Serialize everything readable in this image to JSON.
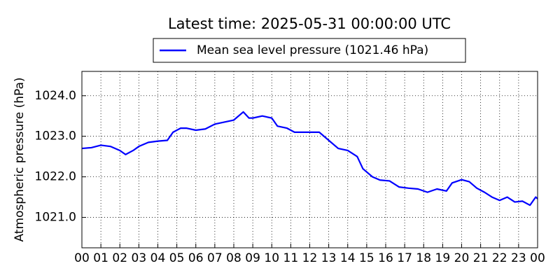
{
  "chart_data": {
    "type": "line",
    "title": "Latest time: 2025-05-31 00:00:00 UTC",
    "ylabel": "Atmospheric pressure (hPa)",
    "series": [
      {
        "name": "Mean sea level pressure (1021.46 hPa)",
        "color": "#0000ff",
        "x": [
          0,
          0.5,
          1,
          1.5,
          2,
          2.3,
          2.7,
          3,
          3.5,
          4,
          4.5,
          4.8,
          5.2,
          5.5,
          6,
          6.5,
          7,
          7.5,
          8,
          8.5,
          8.8,
          9,
          9.5,
          10,
          10.3,
          10.8,
          11.2,
          11.7,
          12,
          12.5,
          13,
          13.5,
          14,
          14.5,
          14.8,
          15.3,
          15.7,
          16.2,
          16.7,
          17.2,
          17.7,
          18.2,
          18.7,
          19.2,
          19.5,
          20,
          20.4,
          20.8,
          21.2,
          21.6,
          22,
          22.4,
          22.8,
          23.2,
          23.6,
          23.9,
          24
        ],
        "values": [
          1022.7,
          1022.72,
          1022.78,
          1022.75,
          1022.65,
          1022.55,
          1022.65,
          1022.75,
          1022.85,
          1022.88,
          1022.9,
          1023.1,
          1023.2,
          1023.2,
          1023.15,
          1023.18,
          1023.3,
          1023.35,
          1023.4,
          1023.6,
          1023.45,
          1023.45,
          1023.5,
          1023.45,
          1023.25,
          1023.2,
          1023.1,
          1023.1,
          1023.1,
          1023.1,
          1022.9,
          1022.7,
          1022.65,
          1022.5,
          1022.2,
          1022.0,
          1021.92,
          1021.9,
          1021.75,
          1021.72,
          1021.7,
          1021.62,
          1021.7,
          1021.65,
          1021.85,
          1021.93,
          1021.88,
          1021.72,
          1021.62,
          1021.5,
          1021.42,
          1021.5,
          1021.38,
          1021.4,
          1021.3,
          1021.5,
          1021.46
        ]
      }
    ],
    "xlim": [
      0,
      24
    ],
    "xticks": [
      {
        "value": 0,
        "label": "00"
      },
      {
        "value": 1,
        "label": "01"
      },
      {
        "value": 2,
        "label": "02"
      },
      {
        "value": 3,
        "label": "03"
      },
      {
        "value": 4,
        "label": "04"
      },
      {
        "value": 5,
        "label": "05"
      },
      {
        "value": 6,
        "label": "06"
      },
      {
        "value": 7,
        "label": "07"
      },
      {
        "value": 8,
        "label": "08"
      },
      {
        "value": 9,
        "label": "09"
      },
      {
        "value": 10,
        "label": "10"
      },
      {
        "value": 11,
        "label": "11"
      },
      {
        "value": 12,
        "label": "12"
      },
      {
        "value": 13,
        "label": "13"
      },
      {
        "value": 14,
        "label": "14"
      },
      {
        "value": 15,
        "label": "15"
      },
      {
        "value": 16,
        "label": "16"
      },
      {
        "value": 17,
        "label": "17"
      },
      {
        "value": 18,
        "label": "18"
      },
      {
        "value": 19,
        "label": "19"
      },
      {
        "value": 20,
        "label": "20"
      },
      {
        "value": 21,
        "label": "21"
      },
      {
        "value": 22,
        "label": "22"
      },
      {
        "value": 23,
        "label": "23"
      },
      {
        "value": 24,
        "label": "00"
      }
    ],
    "ylim": [
      1020.25,
      1024.6
    ],
    "yticks": [
      {
        "value": 1021,
        "label": "1021.0"
      },
      {
        "value": 1022,
        "label": "1022.0"
      },
      {
        "value": 1023,
        "label": "1023.0"
      },
      {
        "value": 1024,
        "label": "1024.0"
      }
    ],
    "grid": true,
    "legend": "top"
  }
}
